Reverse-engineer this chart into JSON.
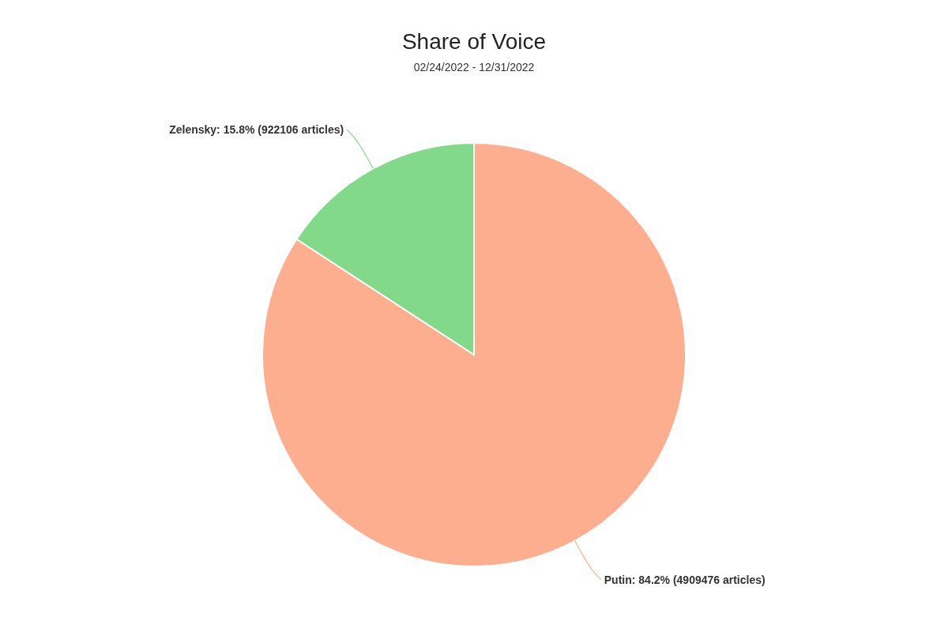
{
  "chart_data": {
    "type": "pie",
    "title": "Share of Voice",
    "subtitle": "02/24/2022 - 12/31/2022",
    "categories": [
      "Putin",
      "Zelensky"
    ],
    "values": [
      4909476,
      922106
    ],
    "colors": [
      "#fdae8e",
      "#82d98a"
    ],
    "value_labels": [
      "84.2% (4909476 articles)",
      "15.8% (922106 articles)"
    ],
    "legend": false
  }
}
